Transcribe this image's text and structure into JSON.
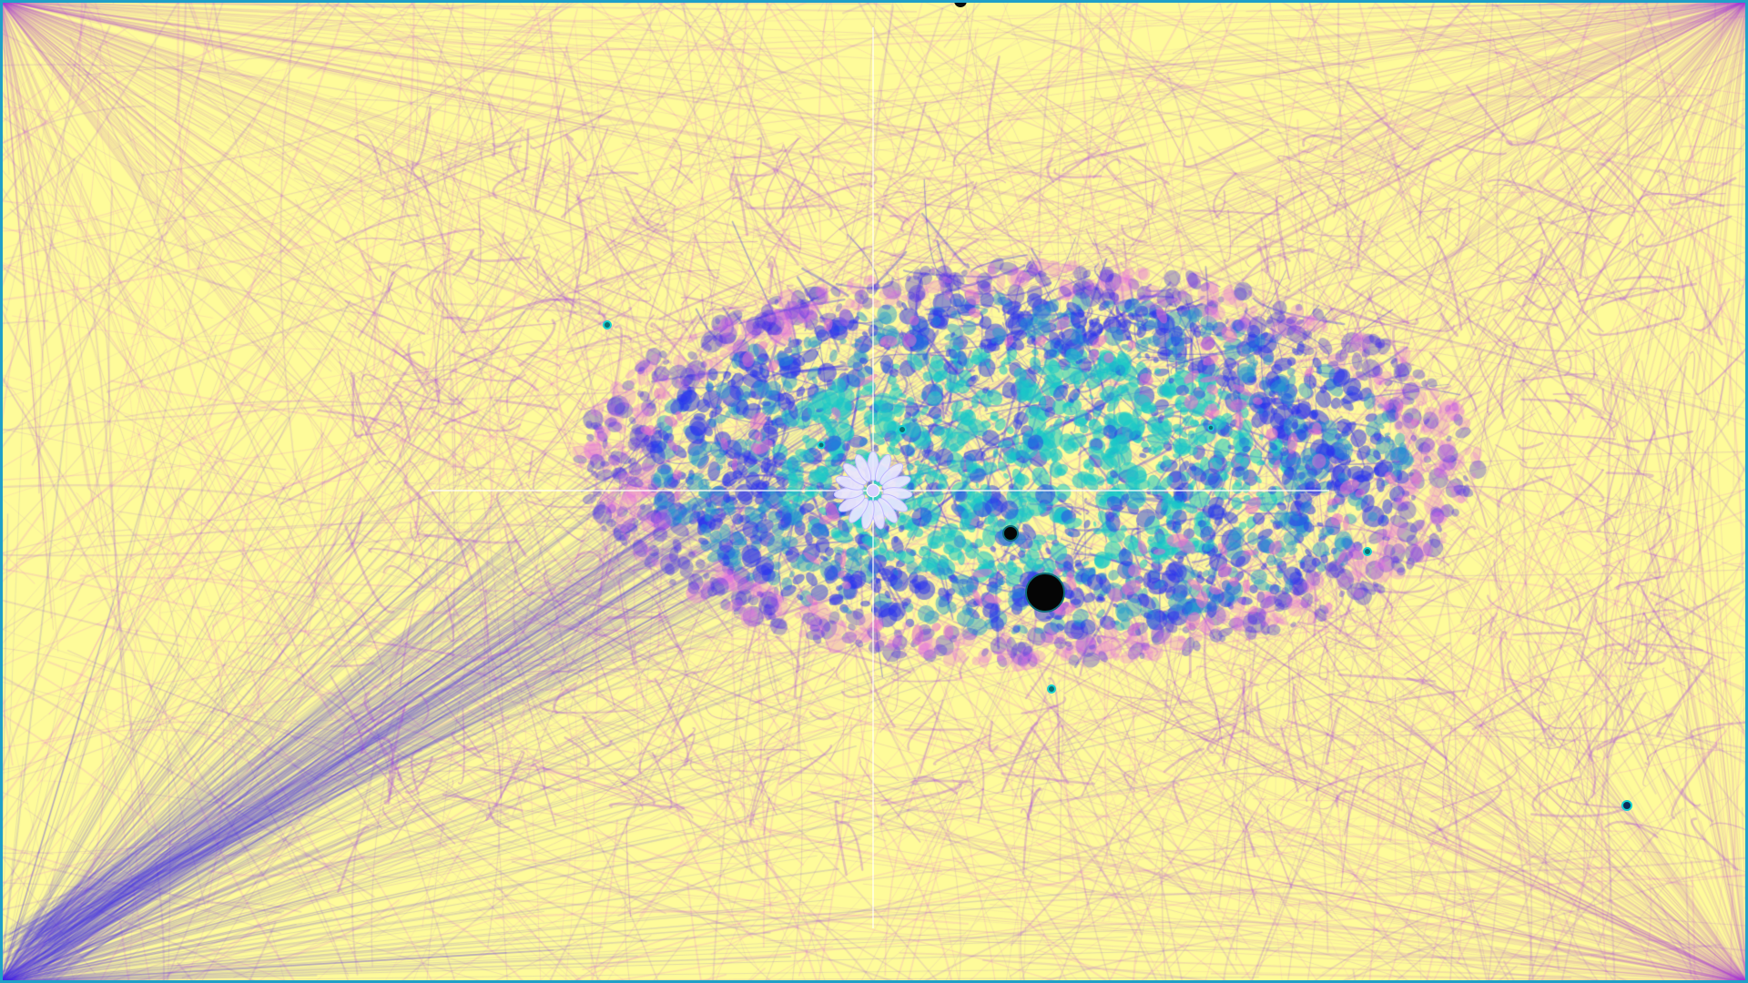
{
  "colors": {
    "background": "#fefb9a",
    "filament_light": "#e27fe0",
    "filament_mid": "#a64ce6",
    "filament_dense": "#3a2df0",
    "core_cyan": "#17c9c9",
    "core_deep": "#1c9ad0",
    "hole": "#050505",
    "crosshair": "#ffffff",
    "border": "#1fa0c8"
  },
  "icons": {
    "cursor": "flower-cursor-icon",
    "crosshair": "crosshair-icon"
  }
}
